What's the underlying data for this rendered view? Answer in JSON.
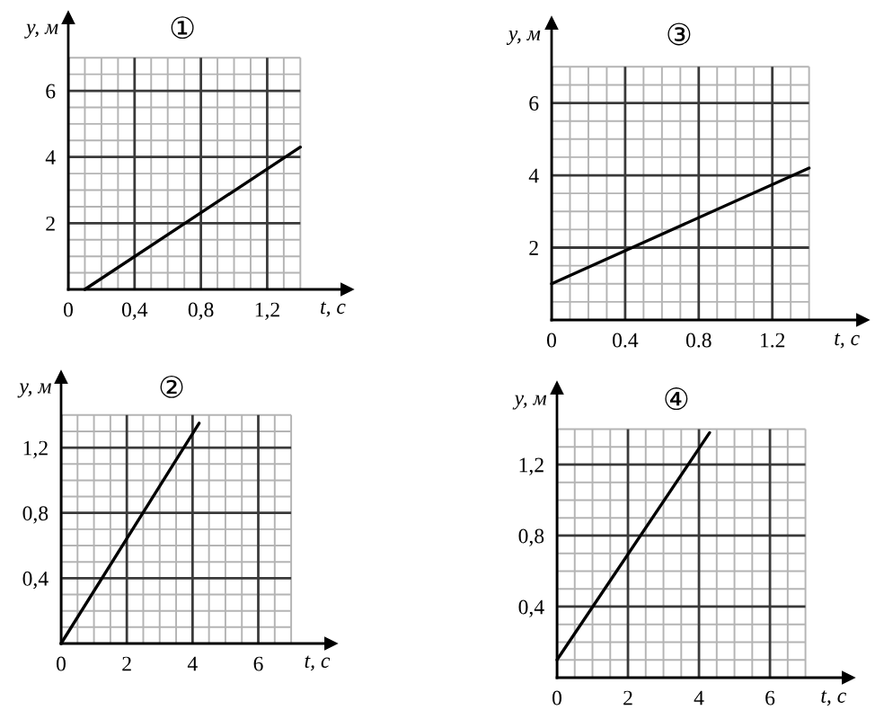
{
  "chart_data": [
    {
      "type": "line",
      "title": "①",
      "xlabel": "t, с",
      "ylabel": "y, м",
      "x": [
        0.1,
        1.4
      ],
      "values": [
        0,
        4.3
      ],
      "color": "#000000",
      "xlim": [
        0,
        1.68
      ],
      "ylim": [
        0,
        8.2
      ],
      "xticks": [
        0,
        {
          "value": 0.1,
          "label": null
        },
        {
          "value": 0.2,
          "label": null
        },
        {
          "value": 0.3,
          "label": null
        },
        {
          "value": 0.4,
          "label": "0,4"
        },
        {
          "value": 0.5,
          "label": null
        },
        {
          "value": 0.6,
          "label": null
        },
        {
          "value": 0.7,
          "label": null
        },
        {
          "value": 0.8,
          "label": "0,8"
        },
        {
          "value": 0.9,
          "label": null
        },
        {
          "value": 1.0,
          "label": null
        },
        {
          "value": 1.1,
          "label": null
        },
        {
          "value": 1.2,
          "label": "1,2"
        },
        {
          "value": 1.3,
          "label": null
        },
        {
          "value": 1.4,
          "label": null
        }
      ],
      "yticks": [
        {
          "value": 0,
          "label": null
        },
        {
          "value": 0.5,
          "label": null
        },
        {
          "value": 1,
          "label": null
        },
        {
          "value": 1.5,
          "label": null
        },
        2,
        {
          "value": 2.5,
          "label": null
        },
        {
          "value": 3,
          "label": null
        },
        {
          "value": 3.5,
          "label": null
        },
        4,
        {
          "value": 4.5,
          "label": null
        },
        {
          "value": 5,
          "label": null
        },
        {
          "value": 5.5,
          "label": null
        },
        6,
        {
          "value": 6.5,
          "label": null
        },
        {
          "value": 7,
          "label": null
        }
      ],
      "grid": true
    },
    {
      "type": "line",
      "title": "③",
      "xlabel": "t, с",
      "ylabel": "y, м",
      "x": [
        0,
        1.4
      ],
      "values": [
        1,
        4.2
      ],
      "color": "#000000",
      "xlim": [
        0,
        1.69
      ],
      "ylim": [
        0,
        8.2
      ],
      "xticks": [
        0,
        {
          "value": 0.1,
          "label": null
        },
        {
          "value": 0.2,
          "label": null
        },
        {
          "value": 0.3,
          "label": null
        },
        0.4,
        {
          "value": 0.5,
          "label": null
        },
        {
          "value": 0.6,
          "label": null
        },
        {
          "value": 0.7,
          "label": null
        },
        0.8,
        {
          "value": 0.9,
          "label": null
        },
        {
          "value": 1.0,
          "label": null
        },
        {
          "value": 1.1,
          "label": null
        },
        1.2,
        {
          "value": 1.3,
          "label": null
        },
        {
          "value": 1.4,
          "label": null
        }
      ],
      "yticks": [
        {
          "value": 0,
          "label": null
        },
        {
          "value": 0.5,
          "label": null
        },
        {
          "value": 1,
          "label": null
        },
        {
          "value": 1.5,
          "label": null
        },
        2,
        {
          "value": 2.5,
          "label": null
        },
        {
          "value": 3,
          "label": null
        },
        {
          "value": 3.5,
          "label": null
        },
        4,
        {
          "value": 4.5,
          "label": null
        },
        {
          "value": 5,
          "label": null
        },
        {
          "value": 5.5,
          "label": null
        },
        6,
        {
          "value": 6.5,
          "label": null
        },
        {
          "value": 7,
          "label": null
        }
      ],
      "grid": true
    },
    {
      "type": "line",
      "title": "②",
      "xlabel": "t, с",
      "ylabel": "y, м",
      "x": [
        0,
        4.2
      ],
      "values": [
        0,
        1.35
      ],
      "color": "#000000",
      "xlim": [
        0,
        8.2
      ],
      "ylim": [
        0,
        1.63
      ],
      "xticks": [
        0,
        {
          "value": 0.5,
          "label": null
        },
        {
          "value": 1,
          "label": null
        },
        {
          "value": 1.5,
          "label": null
        },
        2,
        {
          "value": 2.5,
          "label": null
        },
        {
          "value": 3,
          "label": null
        },
        {
          "value": 3.5,
          "label": null
        },
        4,
        {
          "value": 4.5,
          "label": null
        },
        {
          "value": 5,
          "label": null
        },
        {
          "value": 5.5,
          "label": null
        },
        6,
        {
          "value": 6.5,
          "label": null
        },
        {
          "value": 7,
          "label": null
        }
      ],
      "yticks": [
        {
          "value": 0,
          "label": null
        },
        {
          "value": 0.1,
          "label": null
        },
        {
          "value": 0.2,
          "label": null
        },
        {
          "value": 0.3,
          "label": null
        },
        {
          "value": 0.4,
          "label": "0,4"
        },
        {
          "value": 0.5,
          "label": null
        },
        {
          "value": 0.6,
          "label": null
        },
        {
          "value": 0.7,
          "label": null
        },
        {
          "value": 0.8,
          "label": "0,8"
        },
        {
          "value": 0.9,
          "label": null
        },
        {
          "value": 1.0,
          "label": null
        },
        {
          "value": 1.1,
          "label": null
        },
        {
          "value": 1.2,
          "label": "1,2"
        },
        {
          "value": 1.3,
          "label": null
        },
        {
          "value": 1.4,
          "label": null
        }
      ],
      "grid": true
    },
    {
      "type": "line",
      "title": "④",
      "xlabel": "t, с",
      "ylabel": "y, м",
      "x": [
        0,
        4.3
      ],
      "values": [
        0.1,
        1.38
      ],
      "color": "#000000",
      "xlim": [
        0,
        8.2
      ],
      "ylim": [
        0,
        1.63
      ],
      "xticks": [
        0,
        {
          "value": 0.5,
          "label": null
        },
        {
          "value": 1,
          "label": null
        },
        {
          "value": 1.5,
          "label": null
        },
        2,
        {
          "value": 2.5,
          "label": null
        },
        {
          "value": 3,
          "label": null
        },
        {
          "value": 3.5,
          "label": null
        },
        4,
        {
          "value": 4.5,
          "label": null
        },
        {
          "value": 5,
          "label": null
        },
        {
          "value": 5.5,
          "label": null
        },
        6,
        {
          "value": 6.5,
          "label": null
        },
        {
          "value": 7,
          "label": null
        }
      ],
      "yticks": [
        {
          "value": 0,
          "label": null
        },
        {
          "value": 0.1,
          "label": null
        },
        {
          "value": 0.2,
          "label": null
        },
        {
          "value": 0.3,
          "label": null
        },
        {
          "value": 0.4,
          "label": "0,4"
        },
        {
          "value": 0.5,
          "label": null
        },
        {
          "value": 0.6,
          "label": null
        },
        {
          "value": 0.7,
          "label": null
        },
        {
          "value": 0.8,
          "label": "0,8"
        },
        {
          "value": 0.9,
          "label": null
        },
        {
          "value": 1.0,
          "label": null
        },
        {
          "value": 1.1,
          "label": null
        },
        {
          "value": 1.2,
          "label": "1,2"
        },
        {
          "value": 1.3,
          "label": null
        },
        {
          "value": 1.4,
          "label": null
        }
      ],
      "grid": true
    }
  ]
}
